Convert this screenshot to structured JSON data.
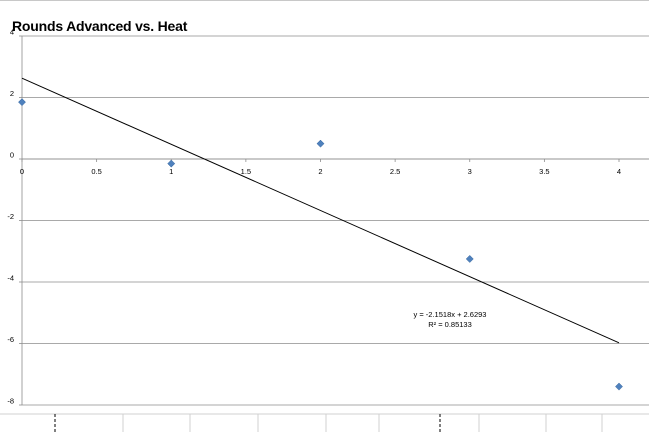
{
  "chart_data": {
    "type": "scatter",
    "title": "Rounds Advanced vs. Heat",
    "xlabel": "",
    "ylabel": "",
    "xlim": [
      0,
      4
    ],
    "ylim": [
      -8,
      4
    ],
    "x_ticks": [
      0,
      0.5,
      1,
      1.5,
      2,
      2.5,
      3,
      3.5,
      4
    ],
    "y_ticks": [
      -8,
      -6,
      -4,
      -2,
      0,
      2,
      4
    ],
    "grid": true,
    "legend": "none",
    "series": [
      {
        "color": "#4f81bd",
        "marker": "diamond",
        "points": [
          {
            "x": 0,
            "y": 1.85
          },
          {
            "x": 1,
            "y": -0.15
          },
          {
            "x": 2,
            "y": 0.5
          },
          {
            "x": 3,
            "y": -3.25
          },
          {
            "x": 4,
            "y": -7.4
          }
        ]
      }
    ],
    "trendline": {
      "type": "linear",
      "slope": -2.1518,
      "intercept": 2.6293,
      "x_range": [
        0,
        4
      ],
      "equation_label": "y = -2.1518x + 2.6293",
      "r2_label": "R² = 0.85133"
    }
  }
}
